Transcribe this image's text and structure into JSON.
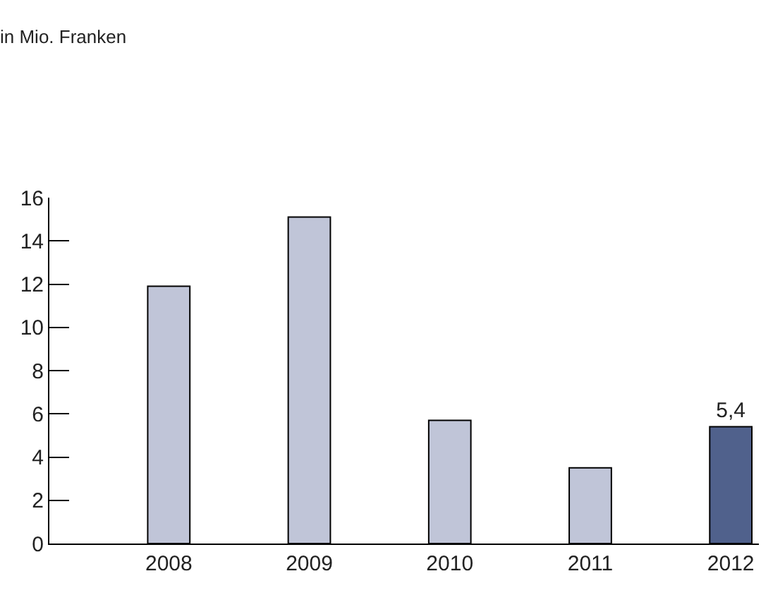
{
  "chart_data": {
    "type": "bar",
    "title": "in Mio. Franken",
    "categories": [
      "2008",
      "2009",
      "2010",
      "2011",
      "2012"
    ],
    "values": [
      11.9,
      15.1,
      5.7,
      3.5,
      5.4
    ],
    "colors": [
      "#c0c5d8",
      "#c0c5d8",
      "#c0c5d8",
      "#c0c5d8",
      "#50618c"
    ],
    "value_labels": [
      null,
      null,
      null,
      null,
      "5,4"
    ],
    "ylim": [
      0,
      16
    ],
    "yticks": [
      0,
      2,
      4,
      6,
      8,
      10,
      12,
      14,
      16
    ]
  }
}
